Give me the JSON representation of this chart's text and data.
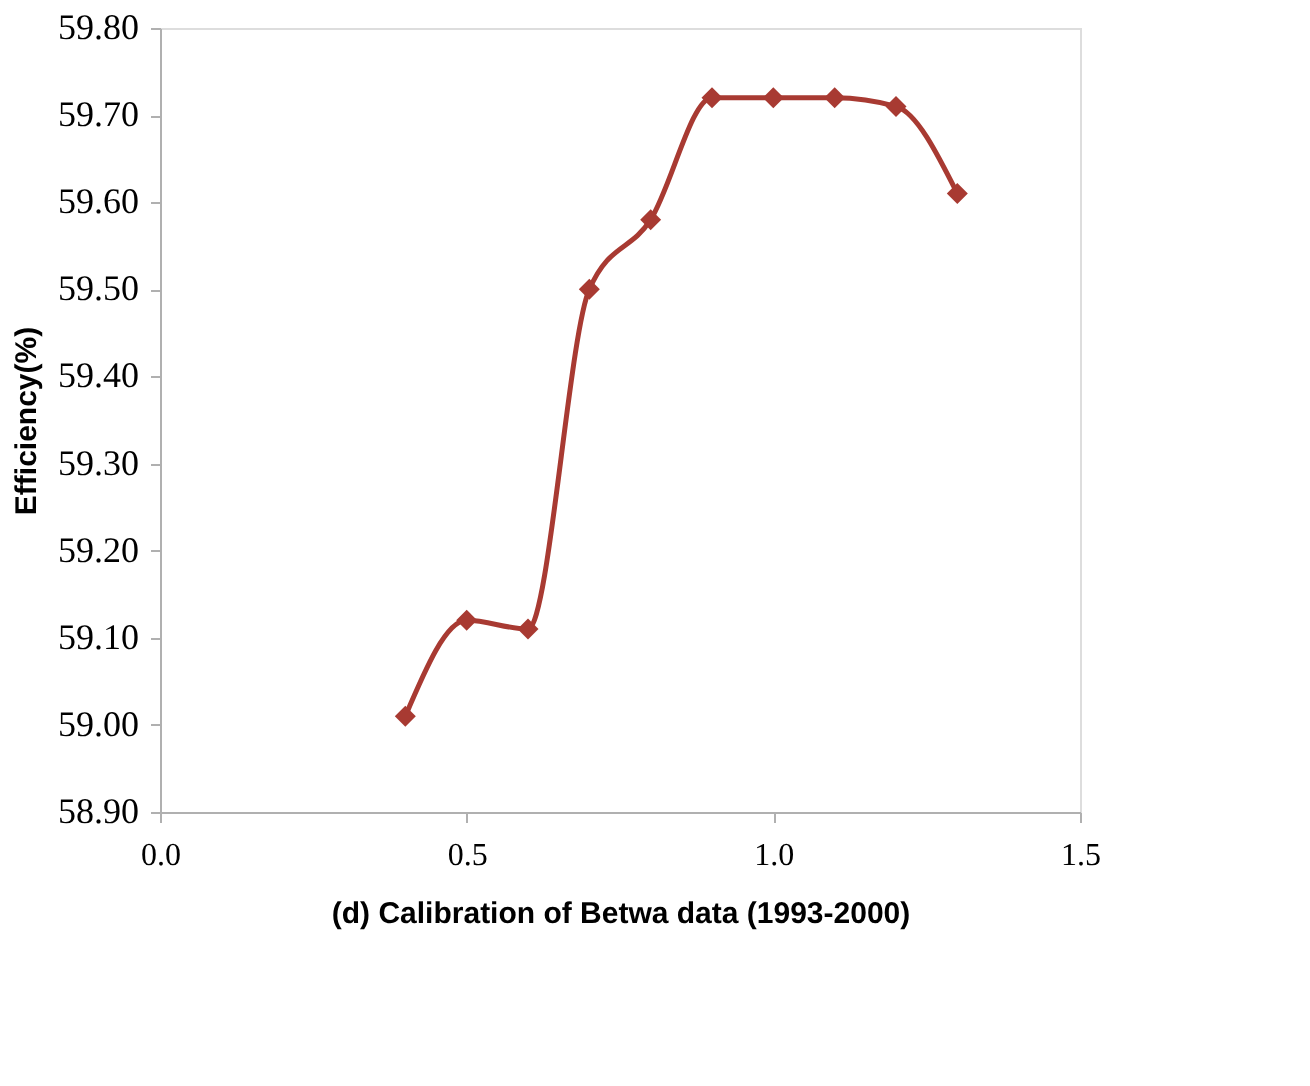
{
  "chart_data": {
    "type": "line",
    "xlabel": "(d) Calibration of  Betwa data (1993-2000)",
    "ylabel": "Efficiency(%)",
    "x": [
      0.4,
      0.5,
      0.6,
      0.7,
      0.8,
      0.9,
      1.0,
      1.1,
      1.2,
      1.3
    ],
    "series": [
      {
        "color": "#a83a32",
        "values": [
          59.01,
          59.12,
          59.11,
          59.5,
          59.58,
          59.72,
          59.72,
          59.72,
          59.71,
          59.61
        ]
      }
    ],
    "xlim": [
      0.0,
      1.5
    ],
    "xticks": [
      {
        "value": 0.0,
        "label": "0.0"
      },
      0.5,
      {
        "value": 1.0,
        "label": "1.0"
      },
      1.5
    ],
    "ylim": [
      58.9,
      59.8
    ],
    "yticks": [
      {
        "value": 58.9,
        "label": "58.90"
      },
      {
        "value": 59.0,
        "label": "59.00"
      },
      {
        "value": 59.1,
        "label": "59.10"
      },
      {
        "value": 59.2,
        "label": "59.20"
      },
      {
        "value": 59.3,
        "label": "59.30"
      },
      {
        "value": 59.4,
        "label": "59.40"
      },
      {
        "value": 59.5,
        "label": "59.50"
      },
      {
        "value": 59.6,
        "label": "59.60"
      },
      {
        "value": 59.7,
        "label": "59.70"
      },
      {
        "value": 59.8,
        "label": "59.80"
      }
    ],
    "marker": "diamond",
    "line_style": "solid",
    "grid": false
  }
}
